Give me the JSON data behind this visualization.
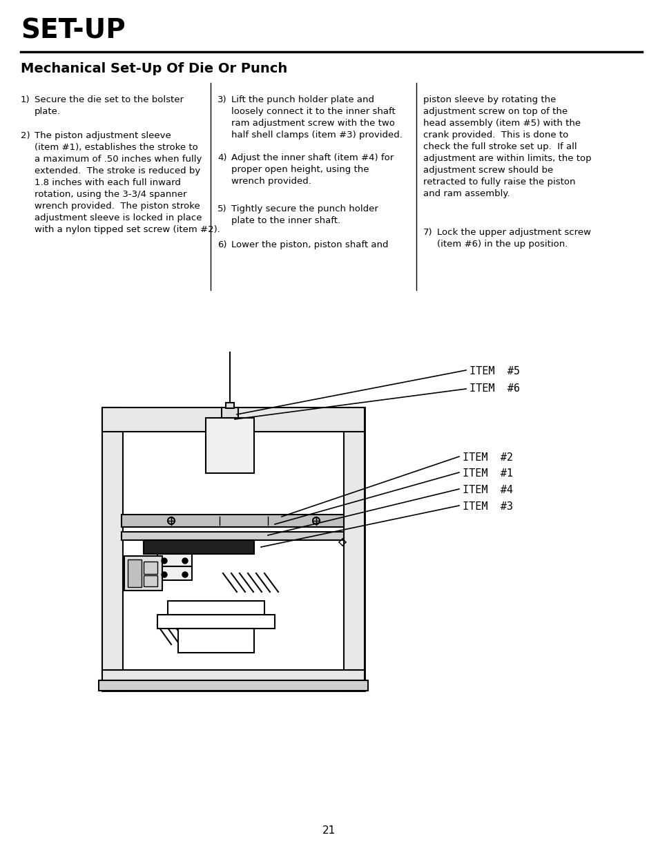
{
  "title": "SET-UP",
  "subtitle": "Mechanical Set-Up Of Die Or Punch",
  "background_color": "#ffffff",
  "text_color": "#000000",
  "page_number": "21",
  "col1_items": [
    [
      "1)",
      "Secure the die set to the bolster\nplate."
    ],
    [
      "2)",
      "The piston adjustment sleeve\n(item #1), establishes the stroke to\na maximum of .50 inches when fully\nextended.  The stroke is reduced by\n1.8 inches with each full inward\nrotation, using the 3-3/4 spanner\nwrench provided.  The piston stroke\nadjustment sleeve is locked in place\nwith a nylon tipped set screw (item #2)."
    ]
  ],
  "col2_items": [
    [
      "3)",
      "Lift the punch holder plate and\nloosely connect it to the inner shaft\nram adjustment screw with the two\nhalf shell clamps (item #3) provided."
    ],
    [
      "4)",
      "Adjust the inner shaft (item #4) for\nproper open height, using the\nwrench provided."
    ],
    [
      "5)",
      "Tightly secure the punch holder\nplate to the inner shaft."
    ],
    [
      "6)",
      "Lower the piston, piston shaft and"
    ]
  ],
  "col3_items": [
    [
      "",
      "piston sleeve by rotating the\nadjustment screw on top of the\nhead assembly (item #5) with the\ncrank provided.  This is done to\ncheck the full stroke set up.  If all\nadjustment are within limits, the top\nadjustment screw should be\nretracted to fully raise the piston\nand ram assembly."
    ],
    [
      "7)",
      "Lock the upper adjustment screw\n(item #6) in the up position."
    ]
  ]
}
